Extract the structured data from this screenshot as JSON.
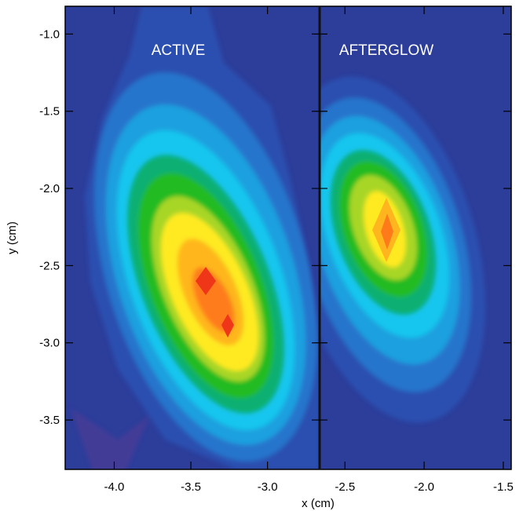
{
  "chart_data": {
    "type": "heatmap",
    "xlabel": "x (cm)",
    "ylabel": "y (cm)",
    "ylim": [
      -3.82,
      -0.82
    ],
    "yticks": [
      "-1.0",
      "-1.5",
      "-2.0",
      "-2.5",
      "-3.0",
      "-3.5"
    ],
    "yticks_values": [
      -1.0,
      -1.5,
      -2.0,
      -2.5,
      -3.0,
      -3.5
    ],
    "colors": {
      "background": "#2c3d9a",
      "levels": [
        "#2a4fb0",
        "#2575cc",
        "#1aa0df",
        "#12c6ee",
        "#10b072",
        "#22bb22",
        "#a8d628",
        "#ffea20",
        "#ffb61e",
        "#ff7b1a",
        "#f03618"
      ]
    },
    "panels": [
      {
        "title": "ACTIVE",
        "xlim": [
          -4.32,
          -2.66
        ],
        "xticks": [
          "-4.0",
          "-3.5",
          "-3.0"
        ],
        "xticks_values": [
          -4.0,
          -3.5,
          -3.0
        ],
        "peak": {
          "x": -3.4,
          "y": -2.6
        },
        "secondary_peak": {
          "x": -3.25,
          "y": -2.9
        }
      },
      {
        "title": "AFTERGLOW",
        "xlim": [
          -2.66,
          -1.45
        ],
        "xticks": [
          "-2.5",
          "-2.0",
          "-1.5"
        ],
        "xticks_values": [
          -2.5,
          -2.0,
          -1.5
        ],
        "peak": {
          "x": -2.2,
          "y": -2.28
        }
      }
    ]
  }
}
